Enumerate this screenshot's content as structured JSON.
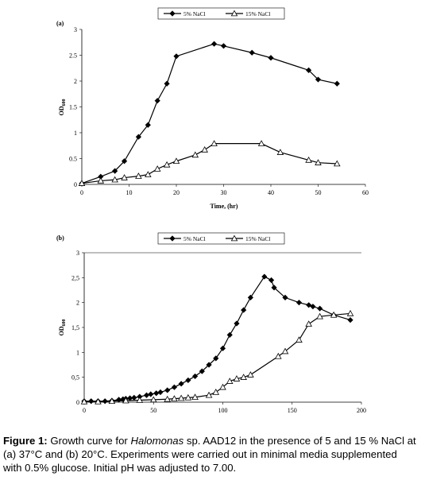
{
  "chart_data": [
    {
      "type": "line",
      "panel": "(a)",
      "xlabel": "Time, (hr)",
      "ylabel": "OD",
      "ylabel_sub": "600",
      "xlim": [
        0,
        60
      ],
      "ylim": [
        0,
        3
      ],
      "xticks": [
        "0",
        "10",
        "20",
        "30",
        "40",
        "50",
        "60"
      ],
      "yticks": [
        "0",
        "0.5",
        "1",
        "1.5",
        "2",
        "2.5",
        "3"
      ],
      "legend": "top-center",
      "series": [
        {
          "name": "5% NaCl",
          "marker": "diamond",
          "x": [
            0,
            4,
            7,
            9,
            12,
            14,
            16,
            18,
            20,
            28,
            30,
            36,
            40,
            48,
            50,
            54
          ],
          "y": [
            0.02,
            0.15,
            0.26,
            0.45,
            0.92,
            1.15,
            1.62,
            1.95,
            2.48,
            2.72,
            2.68,
            2.55,
            2.45,
            2.21,
            2.03,
            1.95
          ]
        },
        {
          "name": "15% NaCl",
          "marker": "triangle",
          "x": [
            0,
            4,
            7,
            9,
            12,
            14,
            16,
            18,
            20,
            24,
            26,
            28,
            38,
            42,
            48,
            50,
            54
          ],
          "y": [
            0.02,
            0.07,
            0.09,
            0.13,
            0.16,
            0.19,
            0.3,
            0.38,
            0.45,
            0.57,
            0.67,
            0.79,
            0.79,
            0.62,
            0.47,
            0.42,
            0.4
          ]
        }
      ]
    },
    {
      "type": "line",
      "panel": "(b)",
      "xlabel": "",
      "ylabel": "OD",
      "ylabel_sub": "600",
      "xlim": [
        0,
        200
      ],
      "ylim": [
        0,
        3
      ],
      "xticks": [
        "0",
        "50",
        "100",
        "150",
        "200"
      ],
      "yticks": [
        "0",
        "0,5",
        "1",
        "1,5",
        "2",
        "2,5",
        "3"
      ],
      "legend": "top-center",
      "series": [
        {
          "name": "5% NaCl",
          "marker": "diamond",
          "x": [
            0,
            5,
            10,
            15,
            20,
            25,
            28,
            30,
            33,
            36,
            40,
            45,
            48,
            52,
            55,
            60,
            65,
            70,
            75,
            80,
            85,
            90,
            95,
            100,
            105,
            110,
            115,
            120,
            130,
            135,
            137,
            145,
            155,
            162,
            165,
            170,
            180,
            192
          ],
          "y": [
            0.02,
            0.02,
            0.02,
            0.02,
            0.03,
            0.05,
            0.06,
            0.07,
            0.08,
            0.09,
            0.11,
            0.14,
            0.16,
            0.18,
            0.2,
            0.24,
            0.3,
            0.37,
            0.44,
            0.52,
            0.62,
            0.75,
            0.88,
            1.08,
            1.35,
            1.58,
            1.85,
            2.1,
            2.52,
            2.45,
            2.3,
            2.1,
            2.0,
            1.95,
            1.92,
            1.88,
            1.75,
            1.65
          ]
        },
        {
          "name": "15% NaCl",
          "marker": "triangle",
          "x": [
            0,
            10,
            20,
            30,
            40,
            50,
            60,
            65,
            70,
            75,
            80,
            90,
            95,
            100,
            105,
            110,
            115,
            120,
            140,
            145,
            155,
            162,
            170,
            180,
            192
          ],
          "y": [
            0.01,
            0.01,
            0.02,
            0.03,
            0.04,
            0.05,
            0.06,
            0.07,
            0.08,
            0.09,
            0.1,
            0.14,
            0.2,
            0.3,
            0.42,
            0.47,
            0.5,
            0.55,
            0.92,
            1.02,
            1.25,
            1.57,
            1.72,
            1.75,
            1.78
          ]
        }
      ]
    }
  ],
  "caption": {
    "label": "Figure 1:",
    "text_part1": " Growth curve for ",
    "organism": "Halomonas",
    "text_part2": " sp. AAD12 in the presence of 5 and 15 % NaCl at (a) 37°C and (b) 20°C. Experiments were carried out in minimal media supplemented with 0.5% glucose. Initial pH was adjusted to 7.00."
  }
}
